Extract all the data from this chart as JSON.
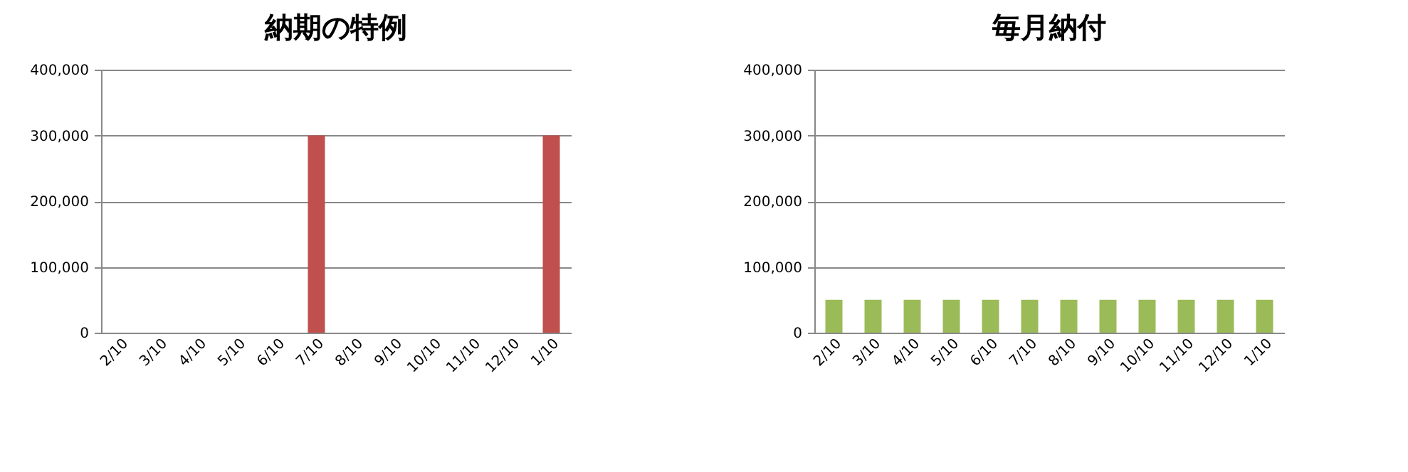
{
  "chart_data": [
    {
      "type": "bar",
      "title": "納期の特例",
      "categories": [
        "2/10",
        "3/10",
        "4/10",
        "5/10",
        "6/10",
        "7/10",
        "8/10",
        "9/10",
        "10/10",
        "11/10",
        "12/10",
        "1/10"
      ],
      "values": [
        0,
        0,
        0,
        0,
        0,
        300000,
        0,
        0,
        0,
        0,
        0,
        300000
      ],
      "color": "#c0504d",
      "ylim": [
        0,
        400000
      ],
      "yticks": [
        {
          "value": 0,
          "label": "0"
        },
        {
          "value": 100000,
          "label": "100,000"
        },
        {
          "value": 200000,
          "label": "200,000"
        },
        {
          "value": 300000,
          "label": "300,000"
        },
        {
          "value": 400000,
          "label": "400,000"
        }
      ],
      "grid": "y"
    },
    {
      "type": "bar",
      "title": "毎月納付",
      "categories": [
        "2/10",
        "3/10",
        "4/10",
        "5/10",
        "6/10",
        "7/10",
        "8/10",
        "9/10",
        "10/10",
        "11/10",
        "12/10",
        "1/10"
      ],
      "values": [
        50000,
        50000,
        50000,
        50000,
        50000,
        50000,
        50000,
        50000,
        50000,
        50000,
        50000,
        50000
      ],
      "color": "#9bbb59",
      "ylim": [
        0,
        400000
      ],
      "yticks": [
        {
          "value": 0,
          "label": "0"
        },
        {
          "value": 100000,
          "label": "100,000"
        },
        {
          "value": 200000,
          "label": "200,000"
        },
        {
          "value": 300000,
          "label": "300,000"
        },
        {
          "value": 400000,
          "label": "400,000"
        }
      ],
      "grid": "y"
    }
  ]
}
